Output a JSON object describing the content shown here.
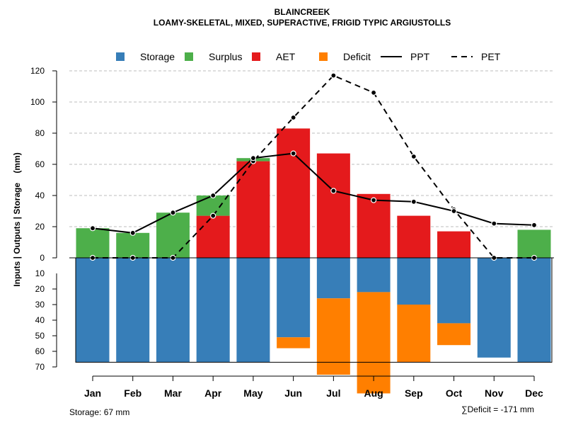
{
  "chart_data": {
    "type": "bar",
    "title": "BLAINCREEK",
    "subtitle": "LOAMY-SKELETAL, MIXED, SUPERACTIVE, FRIGID TYPIC ARGIUSTOLLS",
    "ylabel": "Inputs | Outputs | Storage    (mm)",
    "categories": [
      "Jan",
      "Feb",
      "Mar",
      "Apr",
      "May",
      "Jun",
      "Jul",
      "Aug",
      "Sep",
      "Oct",
      "Nov",
      "Dec"
    ],
    "legend": [
      {
        "name": "Storage",
        "color": "#377EB8",
        "kind": "box"
      },
      {
        "name": "Surplus",
        "color": "#4DAF4A",
        "kind": "box"
      },
      {
        "name": "AET",
        "color": "#E41A1C",
        "kind": "box"
      },
      {
        "name": "Deficit",
        "color": "#FF7F00",
        "kind": "box"
      },
      {
        "name": "PPT",
        "color": "#000000",
        "kind": "line"
      },
      {
        "name": "PET",
        "color": "#000000",
        "kind": "dash"
      }
    ],
    "upper_ylim": [
      0,
      120
    ],
    "upper_ticks": [
      "0",
      "20",
      "40",
      "60",
      "80",
      "100",
      "120"
    ],
    "lower_ylim": [
      0,
      70
    ],
    "lower_ticks": [
      "0",
      "10",
      "20",
      "30",
      "40",
      "50",
      "60",
      "70"
    ],
    "series": [
      {
        "name": "AET",
        "values": [
          0,
          0,
          0,
          27,
          62,
          83,
          67,
          41,
          27,
          17,
          0,
          0
        ]
      },
      {
        "name": "Surplus",
        "values": [
          19,
          16,
          29,
          13,
          2,
          0,
          0,
          0,
          0,
          0,
          0,
          18
        ]
      },
      {
        "name": "Storage",
        "values": [
          67,
          67,
          67,
          67,
          67,
          51,
          26,
          22,
          30,
          42,
          64,
          67
        ]
      },
      {
        "name": "Deficit",
        "values": [
          0,
          0,
          0,
          0,
          0,
          7,
          49,
          65,
          37,
          14,
          0,
          0
        ]
      },
      {
        "name": "PPT",
        "values": [
          19,
          16,
          29,
          40,
          64,
          67,
          43,
          37,
          36,
          30,
          22,
          21
        ]
      },
      {
        "name": "PET",
        "values": [
          0,
          0,
          0,
          27,
          62,
          90,
          117,
          106,
          65,
          31,
          0,
          0
        ]
      }
    ],
    "colors": {
      "storage": "#377EB8",
      "surplus": "#4DAF4A",
      "aet": "#E41A1C",
      "deficit": "#FF7F00",
      "grid": "#BEBEBE",
      "line": "#000000"
    },
    "footer_left": "Storage: 67 mm",
    "footer_right": "∑Deficit = -171 mm"
  }
}
